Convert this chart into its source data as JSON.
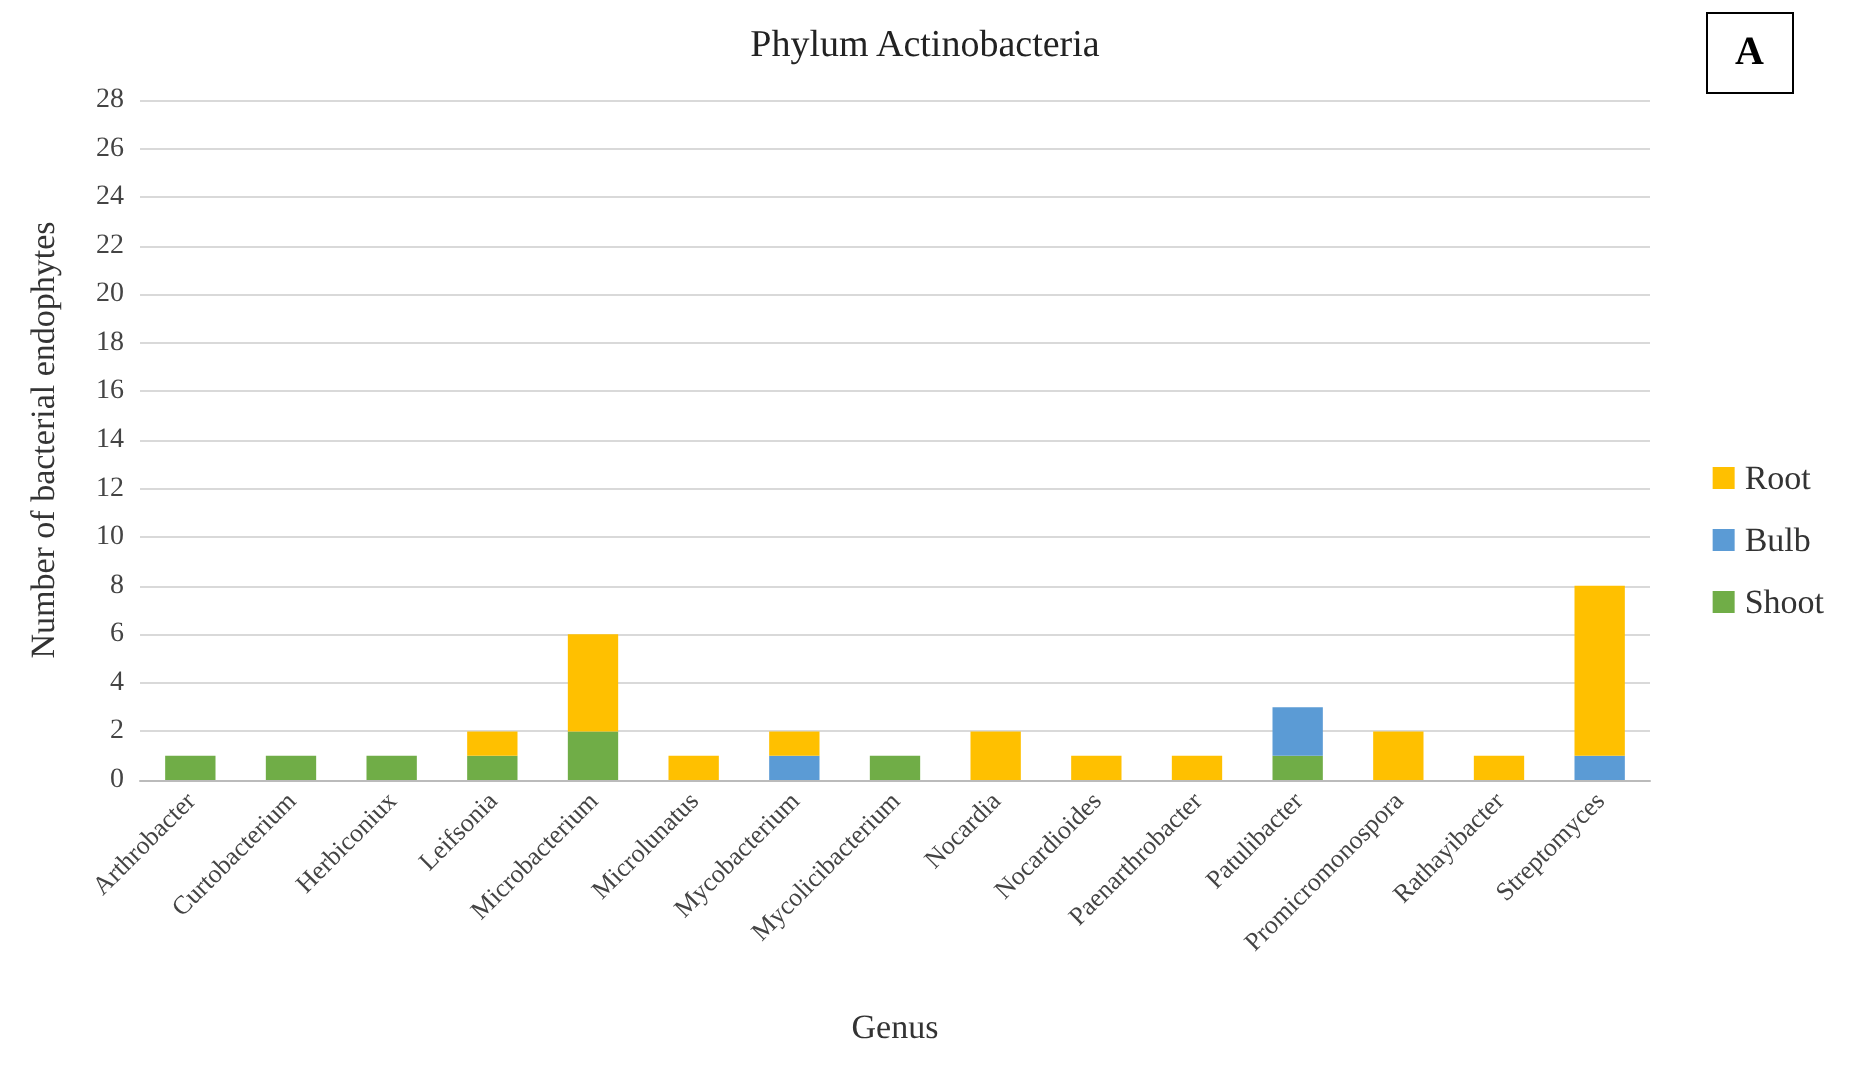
{
  "chart_data": {
    "type": "bar",
    "title": "Phylum Actinobacteria",
    "xlabel": "Genus",
    "ylabel": "Number of bacterial endophytes",
    "annotations": [
      "A"
    ],
    "categories": [
      "Arthrobacter",
      "Curtobacterium",
      "Herbiconiux",
      "Leifsonia",
      "Microbacterium",
      "Microlunatus",
      "Mycobacterium",
      "Mycolicibacterium",
      "Nocardia",
      "Nocardioides",
      "Paenarthrobacter",
      "Patulibacter",
      "Promicromonospora",
      "Rathayibacter",
      "Streptomyces"
    ],
    "series": [
      {
        "name": "Shoot",
        "color": "#70ad47",
        "values": [
          1,
          1,
          1,
          1,
          2,
          0,
          0,
          1,
          0,
          0,
          0,
          1,
          0,
          0,
          0
        ]
      },
      {
        "name": "Bulb",
        "color": "#5b9bd5",
        "values": [
          0,
          0,
          0,
          0,
          0,
          0,
          1,
          0,
          0,
          0,
          0,
          2,
          0,
          0,
          1
        ]
      },
      {
        "name": "Root",
        "color": "#ffc000",
        "values": [
          0,
          0,
          0,
          1,
          4,
          1,
          1,
          0,
          2,
          1,
          1,
          0,
          2,
          1,
          7
        ]
      }
    ],
    "stacked": true,
    "ylim": [
      0,
      28
    ],
    "yticks": [
      0,
      2,
      4,
      6,
      8,
      10,
      12,
      14,
      16,
      18,
      20,
      22,
      24,
      26,
      28
    ],
    "grid": "y",
    "legend": "right"
  }
}
